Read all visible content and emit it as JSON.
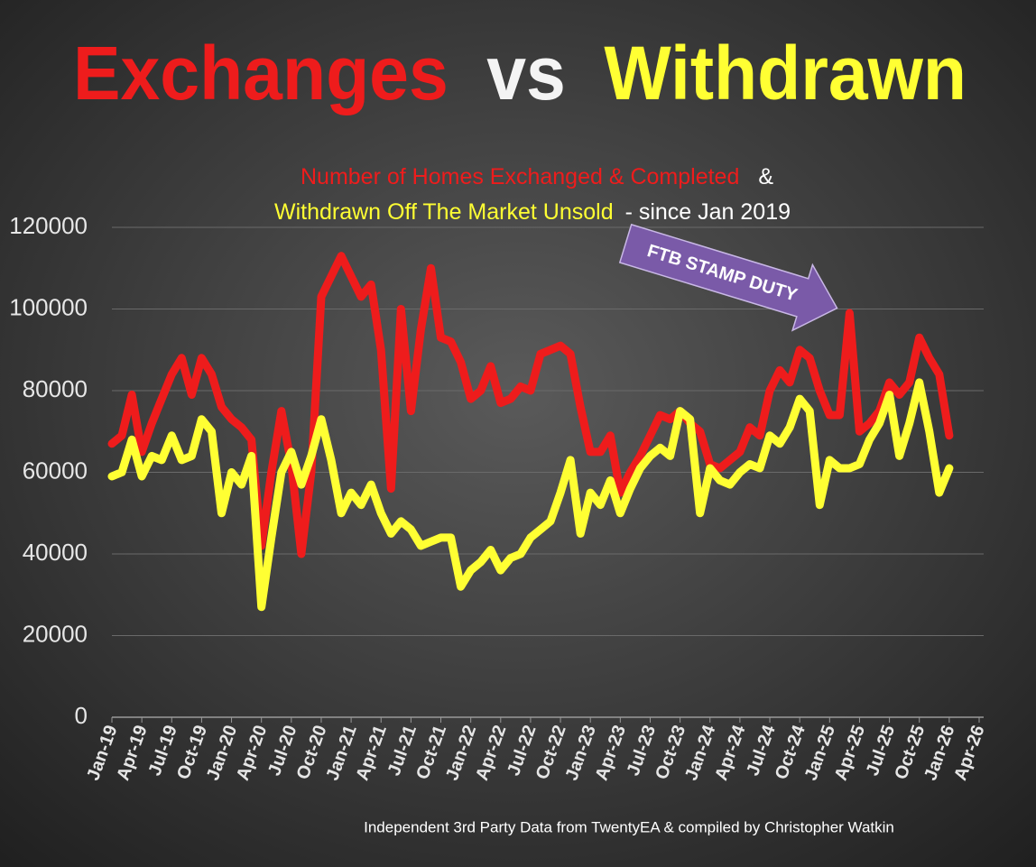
{
  "chart_data": {
    "type": "line",
    "title_parts": [
      {
        "text": "Exchanges",
        "color": "#ee1c1c"
      },
      {
        "text": "vs",
        "color": "#f4f4f4"
      },
      {
        "text": "Withdrawn",
        "color": "#ffff33"
      }
    ],
    "subtitle_lines": [
      [
        {
          "text": "Number of Homes Exchanged & Completed",
          "color": "#ee1c1c"
        },
        {
          "text": "&",
          "color": "#ffffff"
        }
      ],
      [
        {
          "text": "Withdrawn Off The Market Unsold",
          "color": "#ffff33"
        },
        {
          "text": "- since Jan 2019",
          "color": "#ffffff"
        }
      ]
    ],
    "annotation": "FTB STAMP DUTY",
    "source": "Independent 3rd Party Data from TwentyEA  & compiled by Christopher Watkin",
    "categories": [
      "Jan-19",
      null,
      null,
      "Apr-19",
      null,
      null,
      "Jul-19",
      null,
      null,
      "Oct-19",
      null,
      null,
      "Jan-20",
      null,
      null,
      "Apr-20",
      null,
      null,
      "Jul-20",
      null,
      null,
      "Oct-20",
      null,
      null,
      "Jan-21",
      null,
      null,
      "Apr-21",
      null,
      null,
      "Jul-21",
      null,
      null,
      "Oct-21",
      null,
      null,
      "Jan-22",
      null,
      null,
      "Apr-22",
      null,
      null,
      "Jul-22",
      null,
      null,
      "Oct-22",
      null,
      null,
      "Jan-23",
      null,
      null,
      "Apr-23",
      null,
      null,
      "Jul-23",
      null,
      null,
      "Oct-23",
      null,
      null,
      "Jan-24",
      null,
      null,
      "Apr-24",
      null,
      null,
      "Jul-24",
      null,
      null,
      "Oct-24",
      null,
      null,
      "Jan-25",
      null,
      null,
      "Apr-25",
      null,
      null,
      "Jul-25",
      null,
      null,
      "Oct-25",
      null,
      null,
      "Jan-26",
      null,
      null,
      "Apr-26"
    ],
    "series": [
      {
        "color": "#ee1c1c",
        "values": [
          67000,
          69000,
          79000,
          65000,
          72000,
          78000,
          84000,
          88000,
          79000,
          88000,
          84000,
          76000,
          73000,
          71000,
          68000,
          42000,
          60000,
          75000,
          62000,
          40000,
          60000,
          103000,
          108000,
          113000,
          108000,
          103000,
          106000,
          90000,
          56000,
          100000,
          75000,
          95000,
          110000,
          93000,
          92000,
          87000,
          78000,
          80000,
          86000,
          77000,
          78000,
          81000,
          80000,
          89000,
          90000,
          91000,
          89000,
          76000,
          65000,
          65000,
          69000,
          55000,
          60000,
          64000,
          69000,
          74000,
          73000,
          75000,
          72000,
          70000,
          62000,
          61000,
          63000,
          65000,
          71000,
          69000,
          80000,
          85000,
          82000,
          90000,
          88000,
          80000,
          74000,
          74000,
          99000,
          70000,
          72000,
          75000,
          82000,
          79000,
          82000,
          93000,
          88000,
          84000,
          69000,
          null,
          null,
          null
        ]
      },
      {
        "color": "#ffff33",
        "values": [
          59000,
          60000,
          68000,
          59000,
          64000,
          63000,
          69000,
          63000,
          64000,
          73000,
          70000,
          50000,
          60000,
          57000,
          64000,
          27000,
          44000,
          60000,
          65000,
          57000,
          64000,
          73000,
          63000,
          50000,
          55000,
          52000,
          57000,
          50000,
          45000,
          48000,
          46000,
          42000,
          43000,
          44000,
          44000,
          32000,
          36000,
          38000,
          41000,
          36000,
          39000,
          40000,
          44000,
          46000,
          48000,
          55000,
          63000,
          45000,
          55000,
          52000,
          58000,
          50000,
          56000,
          61000,
          64000,
          66000,
          64000,
          75000,
          73000,
          50000,
          61000,
          58000,
          57000,
          60000,
          62000,
          61000,
          69000,
          67000,
          71000,
          78000,
          75000,
          52000,
          63000,
          61000,
          61000,
          62000,
          68000,
          72000,
          79000,
          64000,
          72000,
          82000,
          70000,
          55000,
          61000,
          null,
          null,
          null
        ]
      }
    ],
    "ylim": [
      0,
      120000
    ],
    "yticks": [
      0,
      20000,
      40000,
      60000,
      80000,
      100000,
      120000
    ],
    "grid": true
  }
}
